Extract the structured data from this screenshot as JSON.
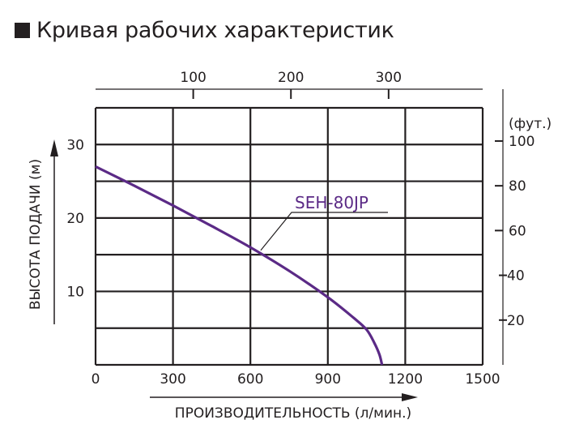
{
  "title": "Кривая рабочих характеристик",
  "chart_data": {
    "type": "line",
    "xlabel": "ПРОИЗВОДИТЕЛЬНОСТЬ (л/мин.)",
    "ylabel": "ВЫСОТА ПОДАЧИ (м)",
    "xlim": [
      0,
      1500
    ],
    "ylim": [
      0,
      35
    ],
    "x_ticks": [
      "0",
      "300",
      "600",
      "900",
      "1200",
      "1500"
    ],
    "y_ticks": [
      "10",
      "20",
      "30"
    ],
    "secondary_x_ticks": [
      "100",
      "200",
      "300"
    ],
    "secondary_y_label": "(фут.)",
    "secondary_y_ticks": [
      "20",
      "40",
      "60",
      "80",
      "100"
    ],
    "grid": true,
    "series": [
      {
        "name": "SEH-80JP",
        "color": "#5b2a86",
        "x": [
          0,
          150,
          300,
          450,
          600,
          750,
          900,
          1000,
          1050,
          1080,
          1100,
          1110
        ],
        "y": [
          27.0,
          24.4,
          21.7,
          18.9,
          16.0,
          12.8,
          9.2,
          6.4,
          4.8,
          3.0,
          1.4,
          0
        ]
      }
    ]
  }
}
